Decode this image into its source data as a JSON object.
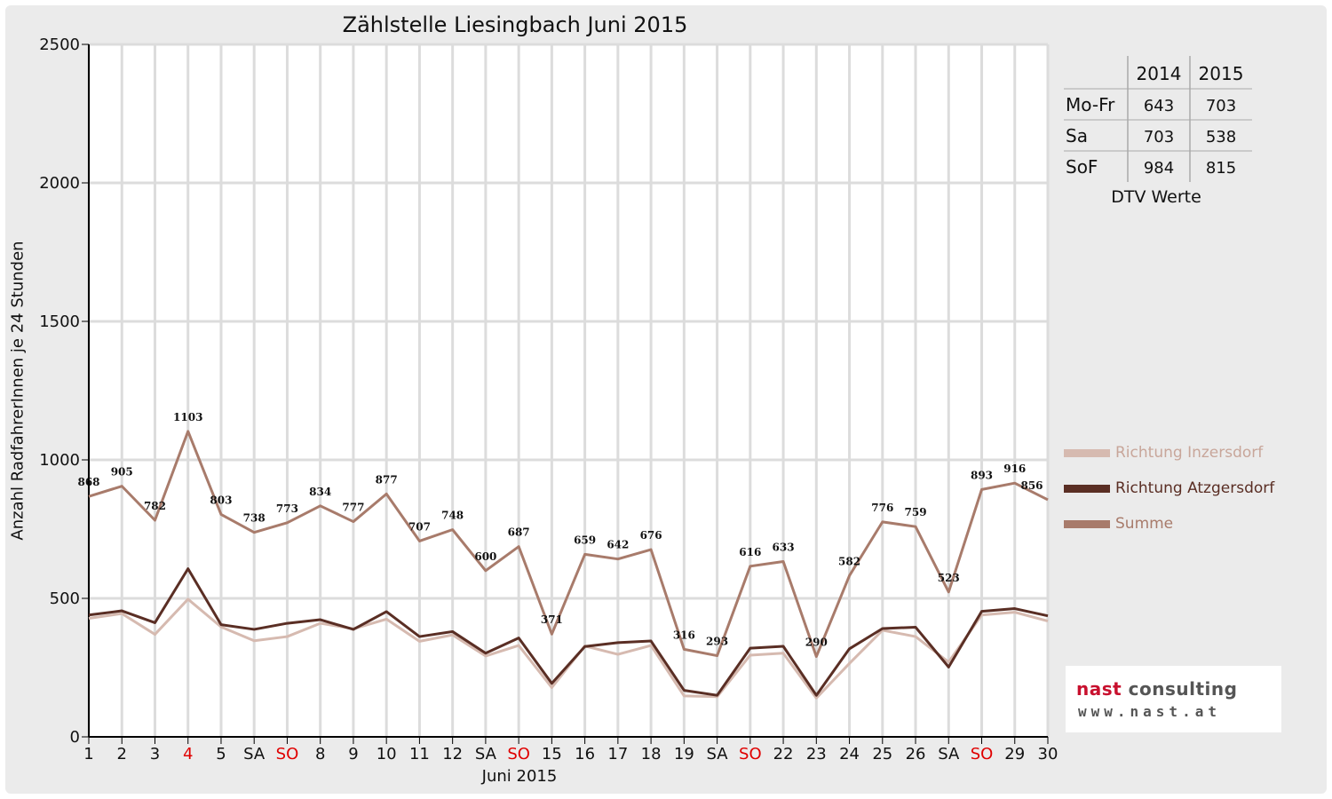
{
  "chart_data": {
    "type": "line",
    "title": "Zählstelle Liesingbach Juni 2015",
    "xlabel": "Juni 2015",
    "ylabel": "Anzahl RadfahrerInnen je 24 Stunden",
    "ylim": [
      0,
      2500
    ],
    "yticks": [
      0,
      500,
      1000,
      1500,
      2000,
      2500
    ],
    "grid": true,
    "legend_position": "right",
    "categories": [
      "1",
      "2",
      "3",
      "4",
      "5",
      "SA",
      "SO",
      "8",
      "9",
      "10",
      "11",
      "12",
      "SA",
      "SO",
      "15",
      "16",
      "17",
      "18",
      "19",
      "SA",
      "SO",
      "22",
      "23",
      "24",
      "25",
      "26",
      "SA",
      "SO",
      "29",
      "30"
    ],
    "highlighted_categories": [
      "4",
      "SO"
    ],
    "highlight_color": "#e00000",
    "series": [
      {
        "name": "Richtung Inzersdorf",
        "color": "#d6bab0",
        "values": [
          428,
          445,
          370,
          497,
          397,
          347,
          362,
          410,
          390,
          425,
          345,
          368,
          292,
          330,
          178,
          328,
          298,
          330,
          148,
          145,
          295,
          302,
          140,
          265,
          385,
          362,
          270,
          440,
          450,
          418
        ]
      },
      {
        "name": "Richtung Atzgersdorf",
        "color": "#5a2e24",
        "values": [
          440,
          455,
          412,
          607,
          405,
          388,
          410,
          423,
          388,
          452,
          362,
          380,
          302,
          357,
          193,
          326,
          340,
          346,
          168,
          150,
          320,
          327,
          150,
          318,
          391,
          396,
          252,
          453,
          463,
          437
        ]
      },
      {
        "name": "Summe",
        "color": "#a87b6b",
        "values": [
          868,
          905,
          782,
          1103,
          803,
          738,
          773,
          834,
          777,
          877,
          707,
          748,
          600,
          687,
          371,
          659,
          642,
          676,
          316,
          293,
          616,
          633,
          290,
          582,
          776,
          759,
          523,
          893,
          916,
          856
        ],
        "labels": [
          "868",
          "905",
          "782",
          "1103",
          "803",
          "738",
          "773",
          "834",
          "777",
          "877",
          "707",
          "748",
          "600",
          "687",
          "371",
          "659",
          "642",
          "676",
          "316",
          "293",
          "616",
          "633",
          "290",
          "582",
          "776",
          "759",
          "523",
          "893",
          "916",
          "856"
        ]
      }
    ]
  },
  "dtv_table": {
    "headers": [
      "",
      "2014",
      "2015"
    ],
    "rows": [
      {
        "label": "Mo-Fr",
        "v2014": "643",
        "v2015": "703"
      },
      {
        "label": "Sa",
        "v2014": "703",
        "v2015": "538"
      },
      {
        "label": "SoF",
        "v2014": "984",
        "v2015": "815"
      }
    ],
    "caption": "DTV Werte"
  },
  "logo": {
    "part1": "nast",
    "part2": " consulting",
    "url": "www.nast.at",
    "accent_color": "#c8102e"
  }
}
